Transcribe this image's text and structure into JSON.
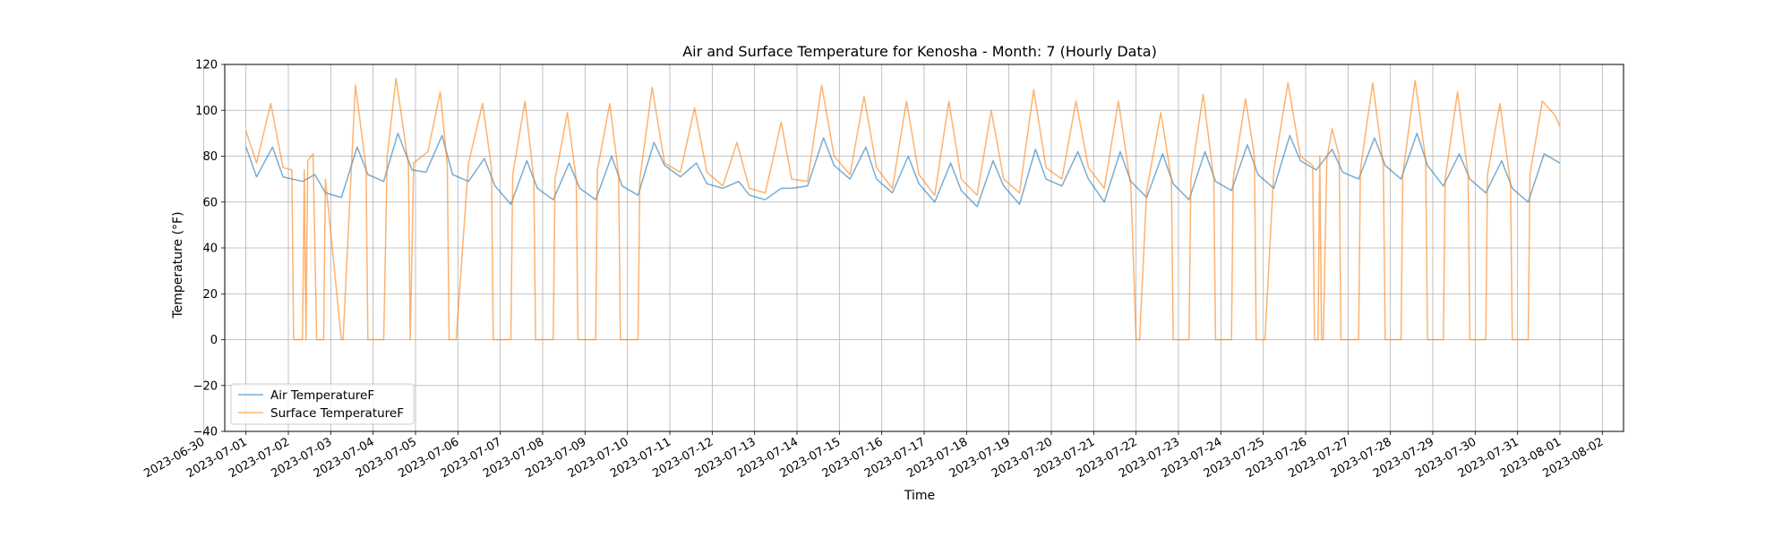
{
  "chart_data": {
    "type": "line",
    "title": "Air and Surface Temperature for Kenosha - Month: 7 (Hourly Data)",
    "xlabel": "Time",
    "ylabel": "Temperature (°F)",
    "ylim": [
      -40,
      120
    ],
    "xlim": [
      "2023-06-30T12:00",
      "2023-08-02T12:00"
    ],
    "grid": true,
    "legend_position": "lower-left",
    "x_tick_labels": [
      "2023-06-30",
      "2023-07-01",
      "2023-07-02",
      "2023-07-03",
      "2023-07-04",
      "2023-07-05",
      "2023-07-06",
      "2023-07-07",
      "2023-07-08",
      "2023-07-09",
      "2023-07-10",
      "2023-07-11",
      "2023-07-12",
      "2023-07-13",
      "2023-07-14",
      "2023-07-15",
      "2023-07-16",
      "2023-07-17",
      "2023-07-18",
      "2023-07-19",
      "2023-07-20",
      "2023-07-21",
      "2023-07-22",
      "2023-07-23",
      "2023-07-24",
      "2023-07-25",
      "2023-07-26",
      "2023-07-27",
      "2023-07-28",
      "2023-07-29",
      "2023-07-30",
      "2023-07-31",
      "2023-08-01",
      "2023-08-02"
    ],
    "y_tick_labels": [
      "−40",
      "−20",
      "0",
      "20",
      "40",
      "60",
      "80",
      "100",
      "120"
    ],
    "series": [
      {
        "name": "Air TemperatureF",
        "color": "#1f77b4",
        "points": [
          [
            "2023-07-01T00:00",
            84
          ],
          [
            "2023-07-01T06:00",
            71
          ],
          [
            "2023-07-01T15:00",
            84
          ],
          [
            "2023-07-01T21:00",
            71
          ],
          [
            "2023-07-02T08:00",
            69
          ],
          [
            "2023-07-02T15:00",
            72
          ],
          [
            "2023-07-02T21:00",
            64
          ],
          [
            "2023-07-03T06:00",
            62
          ],
          [
            "2023-07-03T15:00",
            84
          ],
          [
            "2023-07-03T21:00",
            72
          ],
          [
            "2023-07-04T06:00",
            69
          ],
          [
            "2023-07-04T14:00",
            90
          ],
          [
            "2023-07-04T22:00",
            74
          ],
          [
            "2023-07-05T06:00",
            73
          ],
          [
            "2023-07-05T15:00",
            89
          ],
          [
            "2023-07-05T21:00",
            72
          ],
          [
            "2023-07-06T06:00",
            69
          ],
          [
            "2023-07-06T15:00",
            79
          ],
          [
            "2023-07-06T21:00",
            67
          ],
          [
            "2023-07-07T06:00",
            59
          ],
          [
            "2023-07-07T15:00",
            78
          ],
          [
            "2023-07-07T21:00",
            66
          ],
          [
            "2023-07-08T06:00",
            61
          ],
          [
            "2023-07-08T15:00",
            77
          ],
          [
            "2023-07-08T21:00",
            66
          ],
          [
            "2023-07-09T06:00",
            61
          ],
          [
            "2023-07-09T15:00",
            80
          ],
          [
            "2023-07-09T21:00",
            67
          ],
          [
            "2023-07-10T06:00",
            63
          ],
          [
            "2023-07-10T15:00",
            86
          ],
          [
            "2023-07-10T21:00",
            76
          ],
          [
            "2023-07-11T06:00",
            71
          ],
          [
            "2023-07-11T15:00",
            77
          ],
          [
            "2023-07-11T21:00",
            68
          ],
          [
            "2023-07-12T06:00",
            66
          ],
          [
            "2023-07-12T15:00",
            69
          ],
          [
            "2023-07-12T21:00",
            63
          ],
          [
            "2023-07-13T06:00",
            61
          ],
          [
            "2023-07-13T15:00",
            66
          ],
          [
            "2023-07-13T21:00",
            66
          ],
          [
            "2023-07-14T06:00",
            67
          ],
          [
            "2023-07-14T15:00",
            88
          ],
          [
            "2023-07-14T21:00",
            76
          ],
          [
            "2023-07-15T06:00",
            70
          ],
          [
            "2023-07-15T15:00",
            84
          ],
          [
            "2023-07-15T21:00",
            70
          ],
          [
            "2023-07-16T06:00",
            64
          ],
          [
            "2023-07-16T15:00",
            80
          ],
          [
            "2023-07-16T21:00",
            68
          ],
          [
            "2023-07-17T06:00",
            60
          ],
          [
            "2023-07-17T15:00",
            77
          ],
          [
            "2023-07-17T21:00",
            65
          ],
          [
            "2023-07-18T06:00",
            58
          ],
          [
            "2023-07-18T15:00",
            78
          ],
          [
            "2023-07-18T21:00",
            67
          ],
          [
            "2023-07-19T06:00",
            59
          ],
          [
            "2023-07-19T15:00",
            83
          ],
          [
            "2023-07-19T21:00",
            70
          ],
          [
            "2023-07-20T06:00",
            67
          ],
          [
            "2023-07-20T15:00",
            82
          ],
          [
            "2023-07-20T21:00",
            70
          ],
          [
            "2023-07-21T06:00",
            60
          ],
          [
            "2023-07-21T15:00",
            82
          ],
          [
            "2023-07-21T21:00",
            69
          ],
          [
            "2023-07-22T06:00",
            62
          ],
          [
            "2023-07-22T15:00",
            81
          ],
          [
            "2023-07-22T21:00",
            68
          ],
          [
            "2023-07-23T06:00",
            61
          ],
          [
            "2023-07-23T15:00",
            82
          ],
          [
            "2023-07-23T21:00",
            69
          ],
          [
            "2023-07-24T06:00",
            65
          ],
          [
            "2023-07-24T15:00",
            85
          ],
          [
            "2023-07-24T21:00",
            72
          ],
          [
            "2023-07-25T06:00",
            66
          ],
          [
            "2023-07-25T15:00",
            89
          ],
          [
            "2023-07-25T21:00",
            78
          ],
          [
            "2023-07-26T06:00",
            74
          ],
          [
            "2023-07-26T15:00",
            83
          ],
          [
            "2023-07-26T21:00",
            73
          ],
          [
            "2023-07-27T06:00",
            70
          ],
          [
            "2023-07-27T15:00",
            88
          ],
          [
            "2023-07-27T21:00",
            76
          ],
          [
            "2023-07-28T06:00",
            70
          ],
          [
            "2023-07-28T15:00",
            90
          ],
          [
            "2023-07-28T21:00",
            76
          ],
          [
            "2023-07-29T06:00",
            67
          ],
          [
            "2023-07-29T15:00",
            81
          ],
          [
            "2023-07-29T21:00",
            70
          ],
          [
            "2023-07-30T06:00",
            64
          ],
          [
            "2023-07-30T15:00",
            78
          ],
          [
            "2023-07-30T21:00",
            66
          ],
          [
            "2023-07-31T06:00",
            60
          ],
          [
            "2023-07-31T15:00",
            81
          ],
          [
            "2023-08-01T00:00",
            77
          ]
        ]
      },
      {
        "name": "Surface TemperatureF",
        "color": "#ff7f0e",
        "points": [
          [
            "2023-07-01T00:00",
            91
          ],
          [
            "2023-07-01T06:00",
            77
          ],
          [
            "2023-07-01T14:00",
            103
          ],
          [
            "2023-07-01T21:00",
            75
          ],
          [
            "2023-07-02T02:00",
            74
          ],
          [
            "2023-07-02T03:00",
            0
          ],
          [
            "2023-07-02T08:00",
            0
          ],
          [
            "2023-07-02T09:00",
            74
          ],
          [
            "2023-07-02T10:00",
            0
          ],
          [
            "2023-07-02T11:00",
            78
          ],
          [
            "2023-07-02T14:00",
            81
          ],
          [
            "2023-07-02T16:00",
            0
          ],
          [
            "2023-07-02T20:00",
            0
          ],
          [
            "2023-07-02T21:00",
            70
          ],
          [
            "2023-07-03T06:00",
            0
          ],
          [
            "2023-07-03T07:00",
            0
          ],
          [
            "2023-07-03T14:00",
            111
          ],
          [
            "2023-07-03T20:00",
            75
          ],
          [
            "2023-07-03T21:00",
            0
          ],
          [
            "2023-07-03T23:00",
            0
          ],
          [
            "2023-07-04T06:00",
            0
          ],
          [
            "2023-07-04T08:00",
            80
          ],
          [
            "2023-07-04T13:00",
            114
          ],
          [
            "2023-07-04T16:00",
            98
          ],
          [
            "2023-07-04T20:00",
            76
          ],
          [
            "2023-07-04T21:00",
            0
          ],
          [
            "2023-07-04T23:00",
            77
          ],
          [
            "2023-07-05T07:00",
            82
          ],
          [
            "2023-07-05T14:00",
            108
          ],
          [
            "2023-07-05T18:00",
            76
          ],
          [
            "2023-07-05T19:00",
            0
          ],
          [
            "2023-07-05T23:00",
            0
          ],
          [
            "2023-07-06T06:00",
            77
          ],
          [
            "2023-07-06T14:00",
            103
          ],
          [
            "2023-07-06T19:00",
            75
          ],
          [
            "2023-07-06T20:00",
            0
          ],
          [
            "2023-07-07T06:00",
            0
          ],
          [
            "2023-07-07T07:00",
            72
          ],
          [
            "2023-07-07T14:00",
            104
          ],
          [
            "2023-07-07T19:00",
            70
          ],
          [
            "2023-07-07T20:00",
            0
          ],
          [
            "2023-07-08T06:00",
            0
          ],
          [
            "2023-07-08T07:00",
            70
          ],
          [
            "2023-07-08T14:00",
            99
          ],
          [
            "2023-07-08T19:00",
            70
          ],
          [
            "2023-07-08T20:00",
            0
          ],
          [
            "2023-07-09T06:00",
            0
          ],
          [
            "2023-07-09T07:00",
            74
          ],
          [
            "2023-07-09T14:00",
            103
          ],
          [
            "2023-07-09T19:00",
            72
          ],
          [
            "2023-07-09T20:00",
            0
          ],
          [
            "2023-07-10T06:00",
            0
          ],
          [
            "2023-07-10T07:00",
            70
          ],
          [
            "2023-07-10T14:00",
            110
          ],
          [
            "2023-07-10T21:00",
            77
          ],
          [
            "2023-07-11T06:00",
            73
          ],
          [
            "2023-07-11T14:00",
            101
          ],
          [
            "2023-07-11T21:00",
            73
          ],
          [
            "2023-07-12T06:00",
            67
          ],
          [
            "2023-07-12T14:00",
            86
          ],
          [
            "2023-07-12T21:00",
            66
          ],
          [
            "2023-07-13T06:00",
            64
          ],
          [
            "2023-07-13T12:00",
            84
          ],
          [
            "2023-07-13T15:00",
            95
          ],
          [
            "2023-07-13T21:00",
            70
          ],
          [
            "2023-07-14T06:00",
            69
          ],
          [
            "2023-07-14T14:00",
            111
          ],
          [
            "2023-07-14T21:00",
            80
          ],
          [
            "2023-07-15T06:00",
            72
          ],
          [
            "2023-07-15T14:00",
            106
          ],
          [
            "2023-07-15T21:00",
            75
          ],
          [
            "2023-07-16T06:00",
            66
          ],
          [
            "2023-07-16T14:00",
            104
          ],
          [
            "2023-07-16T21:00",
            72
          ],
          [
            "2023-07-17T06:00",
            63
          ],
          [
            "2023-07-17T14:00",
            104
          ],
          [
            "2023-07-17T21:00",
            70
          ],
          [
            "2023-07-18T06:00",
            63
          ],
          [
            "2023-07-18T14:00",
            100
          ],
          [
            "2023-07-18T21:00",
            70
          ],
          [
            "2023-07-19T06:00",
            64
          ],
          [
            "2023-07-19T14:00",
            109
          ],
          [
            "2023-07-19T21:00",
            75
          ],
          [
            "2023-07-20T06:00",
            70
          ],
          [
            "2023-07-20T14:00",
            104
          ],
          [
            "2023-07-20T21:00",
            75
          ],
          [
            "2023-07-21T06:00",
            66
          ],
          [
            "2023-07-21T14:00",
            104
          ],
          [
            "2023-07-21T21:00",
            67
          ],
          [
            "2023-07-22T00:00",
            0
          ],
          [
            "2023-07-22T02:00",
            0
          ],
          [
            "2023-07-22T06:00",
            65
          ],
          [
            "2023-07-22T14:00",
            99
          ],
          [
            "2023-07-22T20:00",
            70
          ],
          [
            "2023-07-22T21:00",
            0
          ],
          [
            "2023-07-23T06:00",
            0
          ],
          [
            "2023-07-23T07:00",
            70
          ],
          [
            "2023-07-23T14:00",
            107
          ],
          [
            "2023-07-23T20:00",
            70
          ],
          [
            "2023-07-23T21:00",
            0
          ],
          [
            "2023-07-24T06:00",
            0
          ],
          [
            "2023-07-24T07:00",
            70
          ],
          [
            "2023-07-24T14:00",
            105
          ],
          [
            "2023-07-24T19:00",
            80
          ],
          [
            "2023-07-24T20:00",
            0
          ],
          [
            "2023-07-25T01:00",
            0
          ],
          [
            "2023-07-25T06:00",
            74
          ],
          [
            "2023-07-25T14:00",
            112
          ],
          [
            "2023-07-25T21:00",
            80
          ],
          [
            "2023-07-26T04:00",
            76
          ],
          [
            "2023-07-26T05:00",
            0
          ],
          [
            "2023-07-26T07:00",
            0
          ],
          [
            "2023-07-26T08:00",
            80
          ],
          [
            "2023-07-26T09:00",
            0
          ],
          [
            "2023-07-26T10:00",
            0
          ],
          [
            "2023-07-26T12:00",
            79
          ],
          [
            "2023-07-26T15:00",
            92
          ],
          [
            "2023-07-26T19:00",
            80
          ],
          [
            "2023-07-26T20:00",
            0
          ],
          [
            "2023-07-27T06:00",
            0
          ],
          [
            "2023-07-27T07:00",
            74
          ],
          [
            "2023-07-27T14:00",
            112
          ],
          [
            "2023-07-27T20:00",
            76
          ],
          [
            "2023-07-27T21:00",
            0
          ],
          [
            "2023-07-28T06:00",
            0
          ],
          [
            "2023-07-28T07:00",
            72
          ],
          [
            "2023-07-28T14:00",
            113
          ],
          [
            "2023-07-28T20:00",
            78
          ],
          [
            "2023-07-28T21:00",
            0
          ],
          [
            "2023-07-29T06:00",
            0
          ],
          [
            "2023-07-29T07:00",
            70
          ],
          [
            "2023-07-29T14:00",
            108
          ],
          [
            "2023-07-29T20:00",
            72
          ],
          [
            "2023-07-29T21:00",
            0
          ],
          [
            "2023-07-30T06:00",
            0
          ],
          [
            "2023-07-30T07:00",
            72
          ],
          [
            "2023-07-30T14:00",
            103
          ],
          [
            "2023-07-30T20:00",
            68
          ],
          [
            "2023-07-30T21:00",
            0
          ],
          [
            "2023-07-31T06:00",
            0
          ],
          [
            "2023-07-31T07:00",
            72
          ],
          [
            "2023-07-31T14:00",
            104
          ],
          [
            "2023-07-31T21:00",
            98
          ],
          [
            "2023-08-01T00:00",
            93
          ]
        ]
      }
    ]
  }
}
